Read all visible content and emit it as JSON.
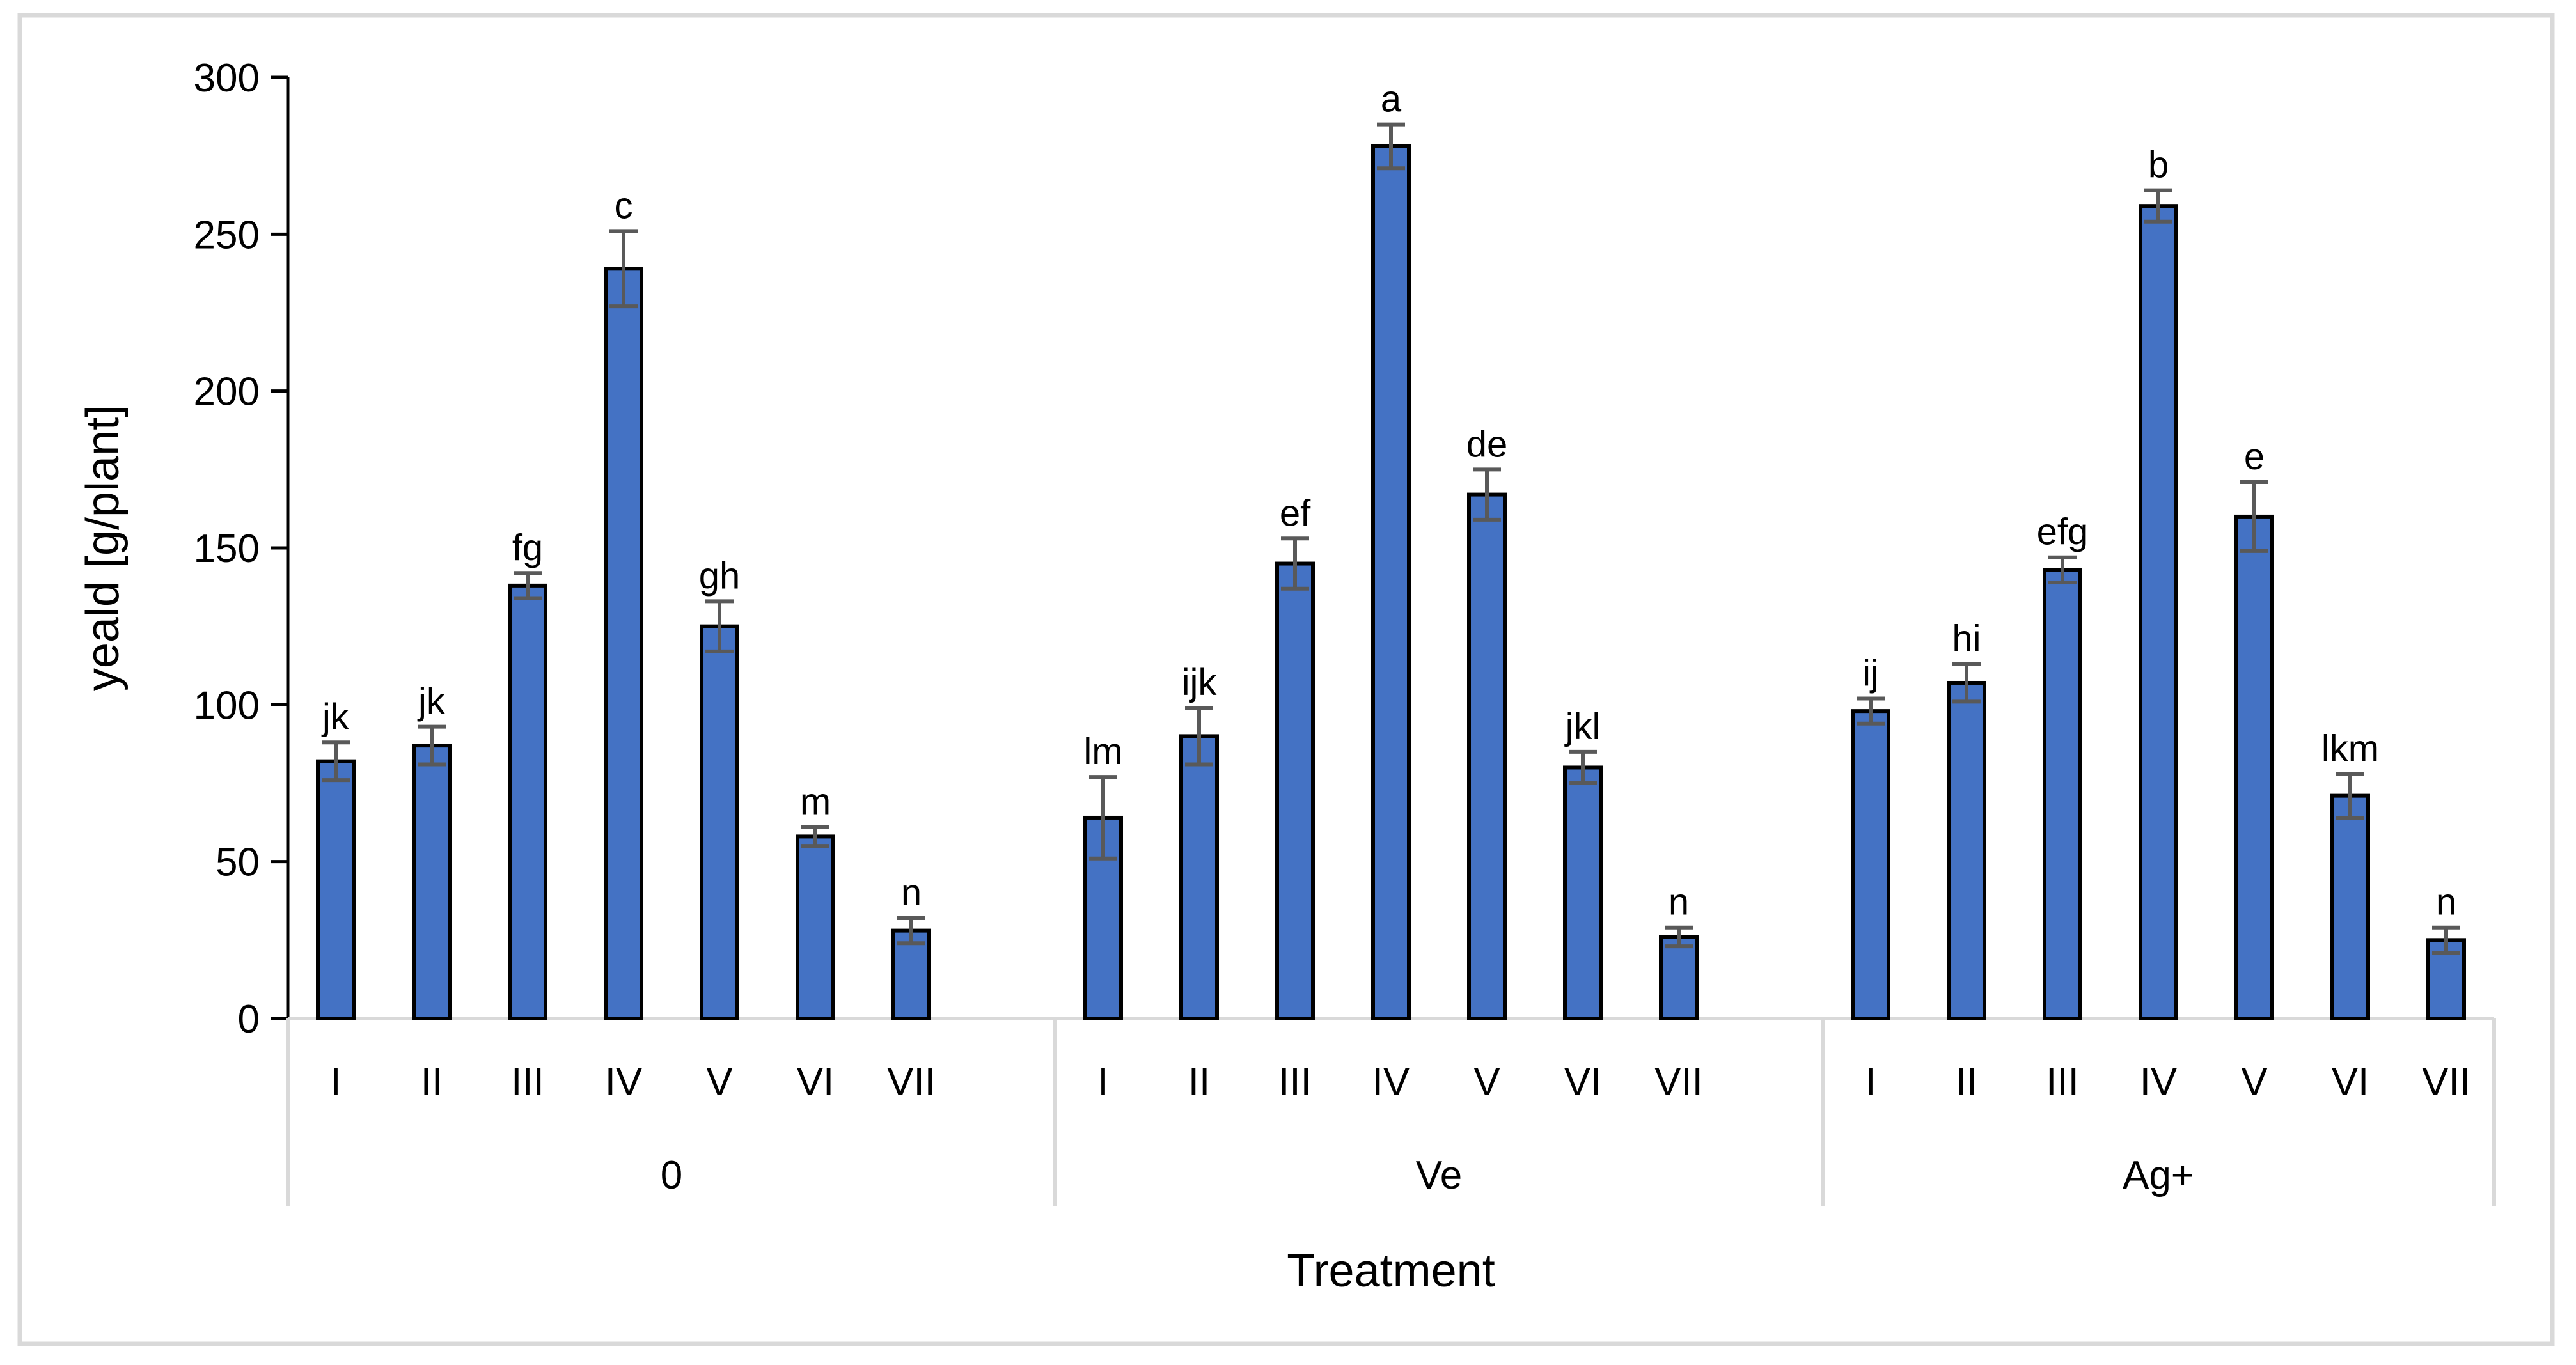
{
  "chart_data": {
    "type": "bar",
    "title": "",
    "ylabel": "yeald [g/plant]",
    "xlabel": "Treatment",
    "ylim": [
      0,
      300
    ],
    "yticks": [
      0,
      50,
      100,
      150,
      200,
      250,
      300
    ],
    "grid": false,
    "legend_position": "none",
    "categories": [
      "I",
      "II",
      "III",
      "IV",
      "V",
      "VI",
      "VII"
    ],
    "groups": [
      {
        "label": "0",
        "values": [
          82,
          87,
          138,
          239,
          125,
          58,
          28
        ],
        "errors": [
          6,
          6,
          4,
          12,
          8,
          3,
          4
        ],
        "letters": [
          "jk",
          "jk",
          "fg",
          "c",
          "gh",
          "m",
          "n"
        ]
      },
      {
        "label": "Ve",
        "values": [
          64,
          90,
          145,
          278,
          167,
          80,
          26
        ],
        "errors": [
          13,
          9,
          8,
          7,
          8,
          5,
          3
        ],
        "letters": [
          "lm",
          "ijk",
          "ef",
          "a",
          "de",
          "jkl",
          "n"
        ]
      },
      {
        "label": "Ag+",
        "values": [
          98,
          107,
          143,
          259,
          160,
          71,
          25
        ],
        "errors": [
          4,
          6,
          4,
          5,
          11,
          7,
          4
        ],
        "letters": [
          "ij",
          "hi",
          "efg",
          "b",
          "e",
          "lkm",
          "n"
        ]
      }
    ],
    "colors": {
      "bar_fill": "#4472C4",
      "bar_border": "#000000",
      "error_bar": "#595959",
      "axis_line": "#000000",
      "band_line": "#D9D9D9",
      "chart_border": "#D9D9D9",
      "text": "#000000",
      "background": "#FFFFFF"
    }
  }
}
